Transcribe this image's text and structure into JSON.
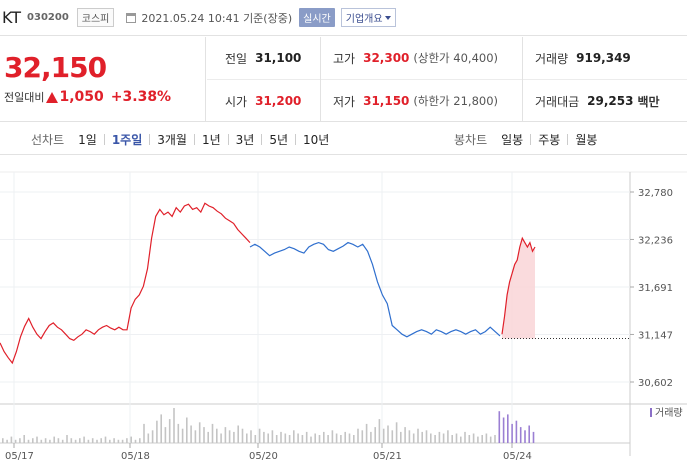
{
  "header": {
    "stock_name": "KT",
    "stock_code": "030200",
    "market": "코스피",
    "timestamp": "2021.05.24 10:41 기준(장중)",
    "realtime_label": "실시간",
    "corp_info_label": "기업개요"
  },
  "price": {
    "current": "32,150",
    "change_label": "전일대비",
    "change": "1,050",
    "change_pct": "+3.38%"
  },
  "stats": {
    "prev_close_label": "전일",
    "prev_close": "31,100",
    "high_label": "고가",
    "high": "32,300",
    "upper_limit": "(상한가 40,400)",
    "volume_label": "거래량",
    "volume": "919,349",
    "open_label": "시가",
    "open": "31,200",
    "low_label": "저가",
    "low": "31,150",
    "lower_limit": "(하한가 21,800)",
    "amount_label": "거래대금",
    "amount": "29,253",
    "amount_unit": "백만"
  },
  "toolbar": {
    "line_chart_label": "선차트",
    "periods": [
      "1일",
      "1주일",
      "3개월",
      "1년",
      "3년",
      "5년",
      "10년"
    ],
    "active_period": "1주일",
    "candle_label": "봉차트",
    "candles": [
      "일봉",
      "주봉",
      "월봉"
    ]
  },
  "colors": {
    "up": "#e0202a",
    "down": "#2f6fce",
    "fill_up": "#f9d5d7"
  },
  "chart_data": {
    "type": "line",
    "y_ticks": [
      "32,780",
      "32,236",
      "31,691",
      "31,147",
      "30,602"
    ],
    "y_tick_values": [
      32780,
      32236,
      31691,
      31147,
      30602
    ],
    "ylim": [
      30602,
      32780
    ],
    "x_labels": [
      "05/17",
      "05/18",
      "05/20",
      "05/21",
      "05/24"
    ],
    "volume_label": "거래량",
    "reference_price": 31100,
    "segments": [
      {
        "color": "up",
        "values": [
          31050,
          30950,
          30880,
          30820,
          30950,
          31120,
          31240,
          31330,
          31230,
          31150,
          31100,
          31180,
          31250,
          31280,
          31230,
          31200,
          31150,
          31100,
          31080,
          31120,
          31150,
          31200,
          31180,
          31150,
          31200,
          31230,
          31250,
          31220,
          31200,
          31230,
          31200,
          31200,
          31450,
          31550,
          31600,
          31700,
          31900,
          32250,
          32500,
          32580,
          32520,
          32550,
          32500,
          32600,
          32550,
          32620,
          32640,
          32580,
          32600,
          32550,
          32650,
          32620,
          32600,
          32560,
          32530,
          32480,
          32450,
          32420,
          32350,
          32300,
          32250,
          32200
        ]
      },
      {
        "color": "down",
        "values": [
          32150,
          32180,
          32150,
          32100,
          32050,
          32080,
          32100,
          32120,
          32150,
          32130,
          32100,
          32080,
          32150,
          32180,
          32200,
          32180,
          32120,
          32100,
          32130,
          32160,
          32200,
          32180,
          32150,
          32180,
          32100,
          31950,
          31750,
          31600,
          31500,
          31250,
          31200,
          31150,
          31120,
          31150,
          31180,
          31200,
          31180,
          31150,
          31200,
          31180,
          31150,
          31180,
          31200,
          31180,
          31150,
          31180,
          31200,
          31150,
          31180,
          31230,
          31180,
          31130
        ]
      },
      {
        "color": "up",
        "values": [
          31150,
          31350,
          31600,
          31750,
          31850,
          31950,
          32000,
          32150,
          32250,
          32200,
          32150,
          32200,
          32100,
          32150
        ]
      }
    ],
    "volume_bars": [
      3,
      2,
      4,
      2,
      3,
      5,
      2,
      3,
      4,
      2,
      3,
      2,
      4,
      3,
      2,
      5,
      3,
      2,
      3,
      4,
      2,
      3,
      2,
      3,
      4,
      2,
      3,
      2,
      2,
      3,
      4,
      2,
      3,
      12,
      6,
      8,
      14,
      18,
      10,
      15,
      22,
      12,
      9,
      16,
      11,
      8,
      13,
      10,
      7,
      12,
      9,
      6,
      10,
      8,
      7,
      11,
      9,
      6,
      8,
      5,
      9,
      7,
      6,
      8,
      5,
      7,
      6,
      5,
      8,
      6,
      5,
      7,
      4,
      6,
      5,
      7,
      5,
      8,
      6,
      5,
      7,
      6,
      5,
      9,
      8,
      12,
      7,
      10,
      15,
      9,
      11,
      8,
      13,
      7,
      10,
      8,
      6,
      9,
      7,
      8,
      6,
      5,
      7,
      6,
      8,
      5,
      6,
      4,
      7,
      5,
      6,
      4,
      5,
      6,
      4,
      5,
      20,
      16,
      18,
      12,
      14,
      10,
      8,
      11,
      7
    ]
  }
}
